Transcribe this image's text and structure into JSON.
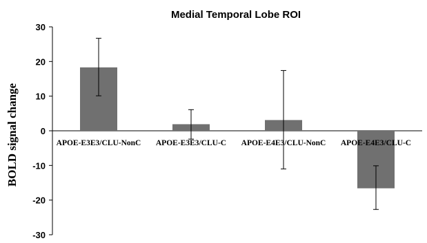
{
  "chart_data": {
    "type": "bar",
    "title": "Medial Temporal Lobe ROI",
    "xlabel": "",
    "ylabel": "BOLD signal change",
    "ylim": [
      -30,
      30
    ],
    "yticks": [
      30,
      20,
      10,
      0,
      -10,
      -20,
      -30
    ],
    "categories": [
      "APOE-E3E3/CLU-NonC",
      "APOE-E3E3/CLU-C",
      "APOE-E4E3/CLU-NonC",
      "APOE-E4E3/CLU-C"
    ],
    "values": [
      18.3,
      1.9,
      3.1,
      -16.6
    ],
    "error_low": [
      10.1,
      -2.4,
      -11.0,
      -22.7
    ],
    "error_high": [
      26.7,
      6.1,
      17.4,
      -10.1
    ],
    "bar_color": "#707070",
    "grid": false,
    "legend": "none"
  }
}
